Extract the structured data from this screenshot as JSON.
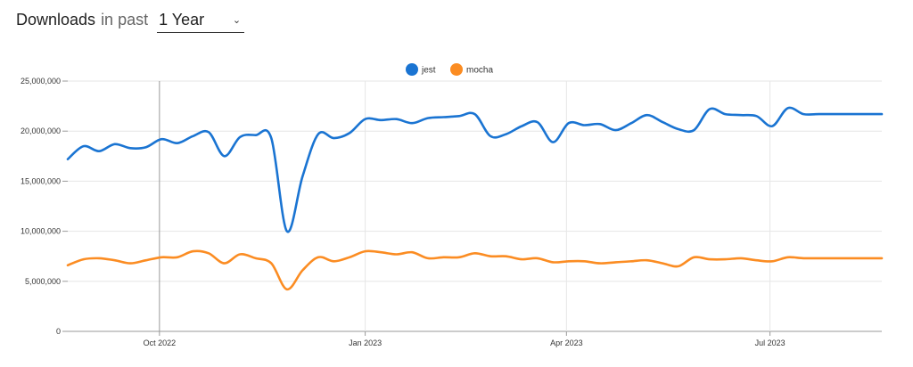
{
  "header": {
    "title": "Downloads",
    "subtitle": "in past",
    "period": "1 Year"
  },
  "colors": {
    "jest": "#1a74d2",
    "mocha": "#fb8c22",
    "grid": "#e6e6e6",
    "axis": "#999999"
  },
  "chart_data": {
    "type": "line",
    "title": "",
    "xlabel": "",
    "ylabel": "",
    "ylim": [
      0,
      25000000
    ],
    "y_ticks": [
      0,
      5000000,
      10000000,
      15000000,
      20000000,
      25000000
    ],
    "y_tick_labels": [
      "0",
      "5,000,000",
      "10,000,000",
      "15,000,000",
      "20,000,000",
      "25,000,000"
    ],
    "x_tick_labels": [
      "Oct 2022",
      "Jan 2023",
      "Apr 2023",
      "Jul 2023"
    ],
    "x_tick_dates": [
      "2022-10-01",
      "2023-01-01",
      "2023-04-01",
      "2023-07-01"
    ],
    "x_range": [
      "2022-08-21",
      "2023-08-20"
    ],
    "legend": "top-center",
    "grid": true,
    "x": [
      "2022-08-21",
      "2022-08-28",
      "2022-09-04",
      "2022-09-11",
      "2022-09-18",
      "2022-09-25",
      "2022-10-02",
      "2022-10-09",
      "2022-10-16",
      "2022-10-23",
      "2022-10-30",
      "2022-11-06",
      "2022-11-13",
      "2022-11-20",
      "2022-11-27",
      "2022-12-04",
      "2022-12-11",
      "2022-12-18",
      "2022-12-25",
      "2023-01-01",
      "2023-01-08",
      "2023-01-15",
      "2023-01-22",
      "2023-01-29",
      "2023-02-05",
      "2023-02-12",
      "2023-02-19",
      "2023-02-26",
      "2023-03-05",
      "2023-03-12",
      "2023-03-19",
      "2023-03-26",
      "2023-04-02",
      "2023-04-09",
      "2023-04-16",
      "2023-04-23",
      "2023-04-30",
      "2023-05-07",
      "2023-05-14",
      "2023-05-21",
      "2023-05-28",
      "2023-06-04",
      "2023-06-11",
      "2023-06-18",
      "2023-06-25",
      "2023-07-02",
      "2023-07-09",
      "2023-07-16",
      "2023-07-23",
      "2023-07-30",
      "2023-08-06",
      "2023-08-13",
      "2023-08-20"
    ],
    "series": [
      {
        "name": "jest",
        "values": [
          17200000,
          18500000,
          18000000,
          18700000,
          18300000,
          18400000,
          19200000,
          18800000,
          19500000,
          19900000,
          17500000,
          19400000,
          19600000,
          19300000,
          10000000,
          15500000,
          19700000,
          19300000,
          19800000,
          21200000,
          21100000,
          21200000,
          20800000,
          21300000,
          21400000,
          21500000,
          21700000,
          19500000,
          19700000,
          20500000,
          20900000,
          18900000,
          20800000,
          20600000,
          20700000,
          20100000,
          20800000,
          21600000,
          20900000,
          20200000,
          20100000,
          22200000,
          21700000,
          21600000,
          21500000,
          20500000,
          22300000,
          21700000,
          21700000,
          21700000,
          21700000,
          21700000,
          21700000
        ]
      },
      {
        "name": "mocha",
        "values": [
          6600000,
          7200000,
          7300000,
          7100000,
          6800000,
          7100000,
          7400000,
          7400000,
          8000000,
          7800000,
          6800000,
          7700000,
          7300000,
          6800000,
          4200000,
          6100000,
          7400000,
          7000000,
          7400000,
          8000000,
          7900000,
          7700000,
          7900000,
          7300000,
          7400000,
          7400000,
          7800000,
          7500000,
          7500000,
          7200000,
          7300000,
          6900000,
          7000000,
          7000000,
          6800000,
          6900000,
          7000000,
          7100000,
          6800000,
          6500000,
          7400000,
          7200000,
          7200000,
          7300000,
          7100000,
          7000000,
          7400000,
          7300000,
          7300000,
          7300000,
          7300000,
          7300000,
          7300000
        ]
      }
    ]
  }
}
